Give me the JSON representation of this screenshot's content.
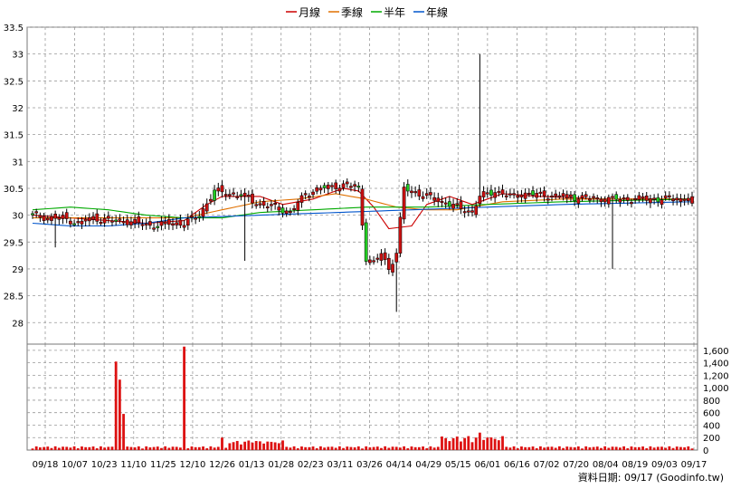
{
  "legend": [
    {
      "name": "月線",
      "color": "#cc0000"
    },
    {
      "name": "季線",
      "color": "#e07000"
    },
    {
      "name": "半年",
      "color": "#00aa00"
    },
    {
      "name": "年線",
      "color": "#0055cc"
    }
  ],
  "footer": "資料日期: 09/17  (Goodinfo.tw)",
  "chart_data": [
    {
      "type": "candlestick",
      "title": "",
      "ylim": [
        27.6,
        33.5
      ],
      "y_ticks": [
        "28",
        "28.5",
        "29",
        "29.5",
        "30",
        "30.5",
        "31",
        "31.5",
        "32",
        "32.5",
        "33",
        "33.5"
      ],
      "x_ticks": [
        "09/18",
        "10/07",
        "10/23",
        "11/10",
        "11/25",
        "12/10",
        "12/26",
        "01/13",
        "01/28",
        "02/23",
        "03/11",
        "03/26",
        "04/14",
        "04/29",
        "05/15",
        "06/01",
        "06/16",
        "07/02",
        "07/20",
        "08/04",
        "08/19",
        "09/03",
        "09/17"
      ],
      "price_anchors": [
        [
          0,
          30.0
        ],
        [
          4,
          29.95
        ],
        [
          8,
          29.95
        ],
        [
          12,
          29.85
        ],
        [
          16,
          29.95
        ],
        [
          20,
          29.9
        ],
        [
          24,
          29.9
        ],
        [
          28,
          29.85
        ],
        [
          32,
          29.8
        ],
        [
          36,
          29.85
        ],
        [
          40,
          29.85
        ],
        [
          44,
          30.0
        ],
        [
          48,
          30.45
        ],
        [
          52,
          30.4
        ],
        [
          56,
          30.35
        ],
        [
          60,
          30.2
        ],
        [
          64,
          30.15
        ],
        [
          68,
          30.05
        ],
        [
          72,
          30.4
        ],
        [
          76,
          30.5
        ],
        [
          80,
          30.55
        ],
        [
          84,
          30.55
        ],
        [
          86,
          30.5
        ],
        [
          88,
          29.2
        ],
        [
          90,
          29.1
        ],
        [
          92,
          29.3
        ],
        [
          94,
          29.0
        ],
        [
          96,
          29.3
        ],
        [
          98,
          30.5
        ],
        [
          102,
          30.4
        ],
        [
          106,
          30.3
        ],
        [
          110,
          30.2
        ],
        [
          114,
          30.1
        ],
        [
          116,
          30.05
        ],
        [
          118,
          30.35
        ],
        [
          122,
          30.45
        ],
        [
          126,
          30.35
        ],
        [
          130,
          30.4
        ],
        [
          140,
          30.35
        ],
        [
          150,
          30.3
        ],
        [
          160,
          30.3
        ],
        [
          170,
          30.3
        ],
        [
          174,
          30.3
        ]
      ],
      "spikes": [
        [
          6,
          29.4,
          "low"
        ],
        [
          56,
          29.15,
          "low"
        ],
        [
          96,
          28.2,
          "low"
        ],
        [
          118,
          33.0,
          "high"
        ],
        [
          153,
          29.0,
          "low"
        ]
      ],
      "moving_averages": {
        "月線": [
          [
            0,
            30.0
          ],
          [
            10,
            29.95
          ],
          [
            20,
            29.9
          ],
          [
            30,
            29.85
          ],
          [
            40,
            29.9
          ],
          [
            46,
            30.2
          ],
          [
            50,
            30.35
          ],
          [
            60,
            30.35
          ],
          [
            66,
            30.2
          ],
          [
            74,
            30.3
          ],
          [
            82,
            30.5
          ],
          [
            86,
            30.45
          ],
          [
            90,
            30.15
          ],
          [
            94,
            29.75
          ],
          [
            100,
            29.8
          ],
          [
            104,
            30.2
          ],
          [
            110,
            30.35
          ],
          [
            116,
            30.2
          ],
          [
            120,
            30.3
          ],
          [
            124,
            30.4
          ],
          [
            134,
            30.35
          ],
          [
            150,
            30.3
          ],
          [
            174,
            30.3
          ]
        ],
        "季線": [
          [
            0,
            29.95
          ],
          [
            20,
            29.95
          ],
          [
            40,
            29.95
          ],
          [
            50,
            30.1
          ],
          [
            60,
            30.25
          ],
          [
            70,
            30.3
          ],
          [
            80,
            30.4
          ],
          [
            88,
            30.3
          ],
          [
            96,
            30.15
          ],
          [
            104,
            30.1
          ],
          [
            112,
            30.1
          ],
          [
            124,
            30.25
          ],
          [
            140,
            30.3
          ],
          [
            174,
            30.3
          ]
        ],
        "半年": [
          [
            0,
            30.1
          ],
          [
            10,
            30.15
          ],
          [
            20,
            30.1
          ],
          [
            30,
            30.0
          ],
          [
            40,
            29.95
          ],
          [
            50,
            29.95
          ],
          [
            60,
            30.05
          ],
          [
            74,
            30.1
          ],
          [
            88,
            30.15
          ],
          [
            104,
            30.15
          ],
          [
            120,
            30.2
          ],
          [
            140,
            30.25
          ],
          [
            174,
            30.3
          ]
        ],
        "年線": [
          [
            0,
            29.85
          ],
          [
            10,
            29.8
          ],
          [
            20,
            29.8
          ],
          [
            30,
            29.85
          ],
          [
            40,
            29.95
          ],
          [
            60,
            30.0
          ],
          [
            80,
            30.05
          ],
          [
            100,
            30.1
          ],
          [
            120,
            30.15
          ],
          [
            140,
            30.2
          ],
          [
            174,
            30.25
          ]
        ]
      }
    },
    {
      "type": "bar",
      "title": "",
      "ylim": [
        0,
        1700
      ],
      "y_ticks": [
        "0",
        "200",
        "400",
        "600",
        "800",
        "1,000",
        "1,200",
        "1,400",
        "1,600"
      ],
      "volume_spikes": [
        [
          22,
          1420
        ],
        [
          23,
          1130
        ],
        [
          24,
          580
        ],
        [
          40,
          1660
        ],
        [
          50,
          200
        ],
        [
          58,
          120
        ],
        [
          120,
          200
        ],
        [
          122,
          180
        ],
        [
          118,
          280
        ]
      ]
    }
  ]
}
